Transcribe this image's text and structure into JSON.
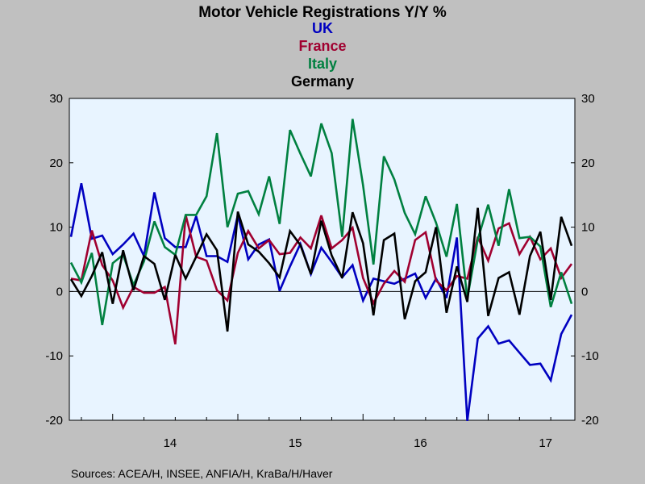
{
  "chart_data": {
    "type": "line",
    "title": "Motor Vehicle Registrations Y/Y %",
    "source": "Sources:  ACEA/H, INSEE, ANFIA/H, KraBa/H/Haver",
    "ylim": [
      -20,
      30
    ],
    "yticks": [
      -20,
      -10,
      0,
      10,
      20,
      30
    ],
    "ytick_labels": [
      "-20",
      "-10",
      "0",
      "10",
      "20",
      "30"
    ],
    "x_start": "2013-09",
    "x_end": "2017-11",
    "xtick_labels": [
      "14",
      "15",
      "16",
      "17"
    ],
    "grid": false,
    "zero_line": true,
    "series": [
      {
        "name": "UK",
        "color": "#0000c0",
        "values": [
          8.5,
          16.8,
          8.2,
          8.7,
          5.8,
          7.3,
          9.0,
          5.5,
          15.4,
          8.3,
          6.9,
          6.9,
          11.7,
          5.5,
          5.5,
          4.6,
          11.9,
          5.0,
          7.3,
          8.1,
          0.1,
          3.9,
          7.4,
          2.7,
          6.8,
          4.6,
          2.2,
          4.1,
          -1.4,
          2.0,
          1.6,
          1.2,
          2.0,
          2.8,
          -1.0,
          2.0,
          -1.0,
          8.4,
          -20.1,
          -7.3,
          -5.4,
          -8.1,
          -7.6,
          -9.5,
          -11.4,
          -11.2,
          -13.8,
          -6.6,
          -3.6
        ]
      },
      {
        "name": "France",
        "color": "#a00030",
        "values": [
          2.0,
          1.7,
          9.5,
          4.1,
          1.7,
          -2.5,
          0.7,
          -0.2,
          -0.2,
          0.7,
          -8.2,
          11.9,
          5.4,
          4.8,
          0.2,
          -1.4,
          6.0,
          9.4,
          6.7,
          8.0,
          5.8,
          6.0,
          8.4,
          6.7,
          11.8,
          6.7,
          8.0,
          9.9,
          2.1,
          -1.8,
          1.2,
          3.2,
          1.5,
          8.0,
          9.2,
          1.7,
          0.2,
          2.4,
          2.0,
          8.5,
          4.8,
          9.8,
          10.6,
          5.8,
          8.5,
          5.0,
          6.7,
          2.1,
          4.3
        ]
      },
      {
        "name": "Italy",
        "color": "#008040",
        "values": [
          4.5,
          1.4,
          6.0,
          -5.2,
          4.4,
          5.7,
          1.0,
          4.7,
          10.9,
          6.9,
          5.7,
          11.9,
          11.9,
          14.8,
          24.6,
          10.0,
          15.2,
          15.6,
          12.0,
          17.9,
          10.5,
          25.1,
          21.4,
          17.9,
          26.1,
          21.5,
          8.5,
          26.8,
          16.5,
          4.2,
          21.0,
          17.4,
          12.2,
          8.9,
          14.8,
          10.7,
          5.4,
          13.6,
          -1.1,
          8.1,
          13.5,
          7.1,
          15.9,
          8.3,
          8.5,
          7.0,
          -2.4,
          3.0,
          -1.9
        ]
      },
      {
        "name": "Germany",
        "color": "#000000",
        "values": [
          1.9,
          -0.7,
          2.4,
          6.1,
          -1.9,
          6.4,
          0.2,
          5.5,
          4.3,
          -1.3,
          5.7,
          2.0,
          5.4,
          8.9,
          6.4,
          -6.2,
          12.4,
          7.3,
          6.2,
          4.4,
          2.2,
          9.4,
          7.2,
          2.7,
          11.0,
          5.6,
          2.1,
          12.3,
          7.5,
          -3.7,
          8.0,
          9.0,
          -4.3,
          1.6,
          3.0,
          10.0,
          -3.3,
          3.9,
          -1.6,
          13.0,
          -3.8,
          2.1,
          3.0,
          -3.6,
          5.5,
          9.3,
          -1.3,
          11.6,
          7.1
        ]
      }
    ]
  }
}
